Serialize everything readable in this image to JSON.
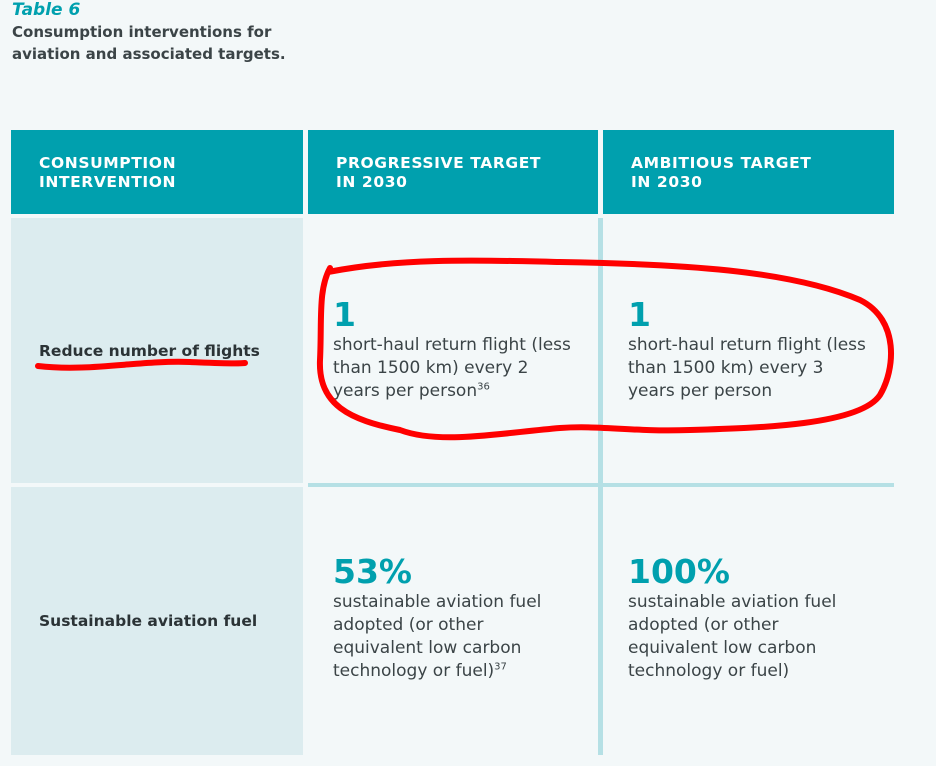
{
  "caption": {
    "label": "Table 6",
    "title": "Consumption interventions for aviation and associated targets."
  },
  "table": {
    "headers": [
      "CONSUMPTION\nINTERVENTION",
      "PROGRESSIVE TARGET\nIN 2030",
      "AMBITIOUS TARGET\nIN 2030"
    ],
    "rows": [
      {
        "intervention": "Reduce number of flights",
        "progressive": {
          "value": "1",
          "text": "short-haul return flight (less than 1500 km) every 2 years per person",
          "footnote": "36"
        },
        "ambitious": {
          "value": "1",
          "text": "short-haul return flight (less than 1500 km) every 3 years per person"
        }
      },
      {
        "intervention": "Sustainable aviation fuel",
        "progressive": {
          "value": "53%",
          "text": "sustainable aviation fuel adopted (or other equivalent low carbon technology or fuel)",
          "footnote": "37"
        },
        "ambitious": {
          "value": "100%",
          "text": "sustainable aviation fuel adopted (or other equivalent low carbon technology or fuel)"
        }
      }
    ]
  },
  "colors": {
    "accent": "#00a0ae",
    "row_label_bg": "#dcecef",
    "annotation": "#ff0000"
  }
}
